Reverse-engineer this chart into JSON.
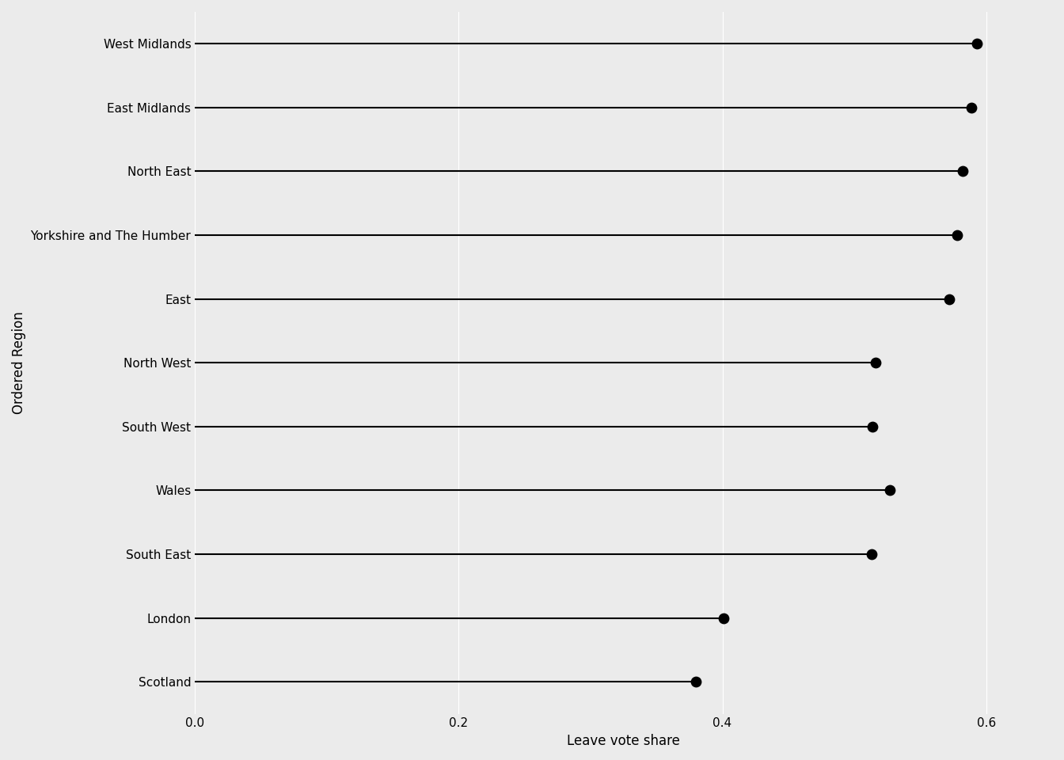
{
  "regions": [
    "Scotland",
    "London",
    "South East",
    "Wales",
    "South West",
    "North West",
    "East",
    "Yorkshire and The Humber",
    "North East",
    "East Midlands",
    "West Midlands"
  ],
  "values": [
    0.38,
    0.401,
    0.513,
    0.527,
    0.514,
    0.516,
    0.572,
    0.578,
    0.582,
    0.589,
    0.593
  ],
  "xlabel": "Leave vote share",
  "ylabel": "Ordered Region",
  "xlim": [
    0.0,
    0.65
  ],
  "xticks": [
    0.0,
    0.2,
    0.4,
    0.6
  ],
  "xtick_labels": [
    "0.0",
    "0.2",
    "0.4",
    "0.6"
  ],
  "background_color": "#EBEBEB",
  "line_color": "black",
  "dot_color": "black",
  "dot_size": 80,
  "line_width": 1.5,
  "axis_label_fontsize": 12,
  "tick_fontsize": 11
}
